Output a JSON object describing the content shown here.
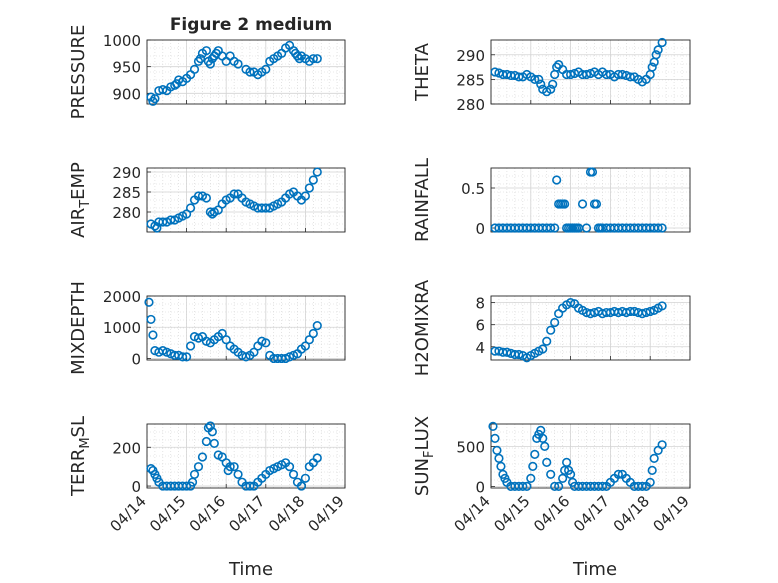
{
  "figure": {
    "title": "Figure 2 medium",
    "xlabel": "Time"
  },
  "colors": {
    "marker": "#0072BD",
    "axis": "#262626",
    "grid": "#d3d3d3"
  },
  "chart_data": [
    {
      "type": "scatter",
      "ylabel": "PRESSURE",
      "ylabel_sub": "",
      "ylim": [
        880,
        1000
      ],
      "yticks": [
        "900",
        "950",
        "1000"
      ],
      "ytick_values": [
        900,
        950,
        1000
      ],
      "xlim": [
        0,
        5
      ],
      "xticks": [],
      "x": [
        0.1,
        0.15,
        0.2,
        0.3,
        0.4,
        0.5,
        0.6,
        0.7,
        0.75,
        0.8,
        0.9,
        1.0,
        1.1,
        1.2,
        1.3,
        1.35,
        1.4,
        1.5,
        1.55,
        1.6,
        1.65,
        1.7,
        1.75,
        1.8,
        1.9,
        2.0,
        2.1,
        2.2,
        2.3,
        2.5,
        2.6,
        2.7,
        2.8,
        2.9,
        3.0,
        3.1,
        3.2,
        3.3,
        3.4,
        3.5,
        3.6,
        3.7,
        3.75,
        3.8,
        3.85,
        3.9,
        4.0,
        4.1,
        4.2,
        4.3
      ],
      "y": [
        893,
        885,
        890,
        905,
        907,
        905,
        912,
        915,
        918,
        925,
        922,
        928,
        935,
        945,
        960,
        965,
        975,
        980,
        960,
        955,
        965,
        970,
        975,
        980,
        970,
        960,
        970,
        960,
        955,
        945,
        940,
        940,
        935,
        940,
        945,
        960,
        965,
        970,
        975,
        985,
        990,
        980,
        975,
        970,
        965,
        970,
        965,
        960,
        965,
        965
      ]
    },
    {
      "type": "scatter",
      "ylabel": "THETA",
      "ylabel_sub": "",
      "ylim": [
        280,
        293
      ],
      "yticks": [
        "280",
        "285",
        "290"
      ],
      "ytick_values": [
        280,
        285,
        290
      ],
      "xlim": [
        0,
        5
      ],
      "xticks": [],
      "x": [
        0.1,
        0.2,
        0.3,
        0.4,
        0.5,
        0.6,
        0.7,
        0.8,
        0.9,
        1.0,
        1.1,
        1.2,
        1.25,
        1.3,
        1.4,
        1.5,
        1.55,
        1.6,
        1.65,
        1.7,
        1.8,
        1.9,
        2.0,
        2.1,
        2.2,
        2.3,
        2.4,
        2.5,
        2.6,
        2.7,
        2.8,
        2.9,
        3.0,
        3.1,
        3.2,
        3.3,
        3.4,
        3.5,
        3.6,
        3.7,
        3.8,
        3.9,
        4.0,
        4.05,
        4.1,
        4.15,
        4.2,
        4.3
      ],
      "y": [
        286.5,
        286.3,
        286,
        286,
        285.8,
        285.8,
        285.5,
        285.5,
        286,
        285.5,
        285,
        285,
        284,
        283,
        282.5,
        283,
        284,
        286,
        287.5,
        288,
        287,
        286,
        286,
        286.2,
        286.5,
        286,
        286,
        286.2,
        286.5,
        286,
        286.5,
        286,
        286,
        285.5,
        286,
        286,
        285.8,
        285.5,
        285.5,
        285,
        284.5,
        285,
        286,
        287.5,
        288.5,
        290,
        291,
        292.5
      ]
    },
    {
      "type": "scatter",
      "ylabel": "AIR",
      "ylabel_sub": "T",
      "ylabel_suffix": "EMP",
      "ylim": [
        275,
        291
      ],
      "yticks": [
        "280",
        "285",
        "290"
      ],
      "ytick_values": [
        280,
        285,
        290
      ],
      "xlim": [
        0,
        5
      ],
      "xticks": [],
      "x": [
        0.1,
        0.2,
        0.25,
        0.3,
        0.4,
        0.5,
        0.6,
        0.7,
        0.8,
        0.9,
        1.0,
        1.1,
        1.2,
        1.3,
        1.4,
        1.5,
        1.6,
        1.65,
        1.7,
        1.8,
        1.9,
        2.0,
        2.1,
        2.2,
        2.3,
        2.4,
        2.5,
        2.6,
        2.7,
        2.8,
        2.9,
        3.0,
        3.1,
        3.2,
        3.3,
        3.4,
        3.5,
        3.6,
        3.7,
        3.8,
        3.9,
        4.0,
        4.1,
        4.2,
        4.3
      ],
      "y": [
        277,
        276.5,
        276,
        277.5,
        277.5,
        277.5,
        278,
        278,
        278.5,
        279,
        279.5,
        281,
        283,
        284,
        284,
        283.5,
        280,
        279.5,
        280,
        280.5,
        282,
        283,
        283.5,
        284.5,
        284.5,
        283.5,
        282.5,
        282,
        281.5,
        281,
        281,
        281,
        281,
        281.5,
        282,
        282.5,
        283.5,
        284.5,
        285,
        284,
        283,
        284,
        286,
        288,
        290
      ]
    },
    {
      "type": "scatter",
      "ylabel": "RAINFALL",
      "ylabel_sub": "",
      "ylim": [
        -0.05,
        0.75
      ],
      "yticks": [
        "0",
        "0.5"
      ],
      "ytick_values": [
        0,
        0.5
      ],
      "xlim": [
        0,
        5
      ],
      "xticks": [],
      "x": [
        0.1,
        0.2,
        0.3,
        0.4,
        0.5,
        0.6,
        0.7,
        0.8,
        0.9,
        1.0,
        1.1,
        1.2,
        1.3,
        1.4,
        1.5,
        1.6,
        1.65,
        1.7,
        1.75,
        1.8,
        1.85,
        1.9,
        1.95,
        2.0,
        2.05,
        2.1,
        2.15,
        2.2,
        2.3,
        2.4,
        2.5,
        2.55,
        2.6,
        2.65,
        2.7,
        2.75,
        2.8,
        2.9,
        3.0,
        3.1,
        3.2,
        3.3,
        3.4,
        3.5,
        3.6,
        3.7,
        3.8,
        3.9,
        4.0,
        4.1,
        4.2,
        4.3
      ],
      "y": [
        0,
        0,
        0,
        0,
        0,
        0,
        0,
        0,
        0,
        0,
        0,
        0,
        0,
        0,
        0,
        0,
        0.6,
        0.3,
        0.3,
        0.3,
        0.3,
        0,
        0,
        0,
        0,
        0,
        0,
        0,
        0.3,
        0,
        0.7,
        0.7,
        0.3,
        0.3,
        0,
        0,
        0,
        0,
        0,
        0,
        0,
        0,
        0,
        0,
        0,
        0,
        0,
        0,
        0,
        0,
        0,
        0
      ]
    },
    {
      "type": "scatter",
      "ylabel": "MIXDEPTH",
      "ylabel_sub": "",
      "ylim": [
        -50,
        2000
      ],
      "yticks": [
        "0",
        "1000",
        "2000"
      ],
      "ytick_values": [
        0,
        1000,
        2000
      ],
      "xlim": [
        0,
        5
      ],
      "xticks": [],
      "x": [
        0.05,
        0.1,
        0.15,
        0.2,
        0.3,
        0.4,
        0.5,
        0.6,
        0.7,
        0.8,
        0.9,
        1.0,
        1.1,
        1.2,
        1.3,
        1.4,
        1.5,
        1.6,
        1.7,
        1.8,
        1.9,
        2.0,
        2.1,
        2.2,
        2.3,
        2.4,
        2.5,
        2.6,
        2.7,
        2.8,
        2.9,
        3.0,
        3.1,
        3.2,
        3.3,
        3.4,
        3.5,
        3.6,
        3.7,
        3.8,
        3.9,
        4.0,
        4.1,
        4.2,
        4.3
      ],
      "y": [
        1800,
        1250,
        750,
        250,
        200,
        250,
        200,
        150,
        100,
        100,
        50,
        50,
        400,
        700,
        650,
        700,
        550,
        500,
        600,
        700,
        800,
        600,
        400,
        300,
        200,
        100,
        50,
        100,
        200,
        400,
        550,
        500,
        100,
        0,
        0,
        0,
        0,
        50,
        100,
        150,
        300,
        400,
        600,
        800,
        1050
      ]
    },
    {
      "type": "scatter",
      "ylabel": "H2OMIXRA",
      "ylabel_sub": "",
      "ylim": [
        2.8,
        8.6
      ],
      "yticks": [
        "4",
        "6",
        "8"
      ],
      "ytick_values": [
        4,
        6,
        8
      ],
      "xlim": [
        0,
        5
      ],
      "xticks": [],
      "x": [
        0.1,
        0.2,
        0.3,
        0.4,
        0.5,
        0.6,
        0.7,
        0.8,
        0.9,
        1.0,
        1.1,
        1.2,
        1.3,
        1.4,
        1.5,
        1.6,
        1.7,
        1.8,
        1.9,
        2.0,
        2.1,
        2.2,
        2.3,
        2.4,
        2.5,
        2.6,
        2.7,
        2.8,
        2.9,
        3.0,
        3.1,
        3.2,
        3.3,
        3.4,
        3.5,
        3.6,
        3.7,
        3.8,
        3.9,
        4.0,
        4.1,
        4.2,
        4.3
      ],
      "y": [
        3.6,
        3.6,
        3.5,
        3.5,
        3.4,
        3.3,
        3.3,
        3.2,
        3.0,
        3.2,
        3.4,
        3.6,
        3.8,
        4.5,
        5.5,
        6.2,
        7.0,
        7.5,
        7.8,
        8.0,
        7.9,
        7.5,
        7.3,
        7.1,
        7.0,
        7.1,
        7.2,
        7.0,
        7.1,
        7.1,
        7.2,
        7.1,
        7.2,
        7.1,
        7.2,
        7.2,
        7.1,
        7.0,
        7.1,
        7.2,
        7.3,
        7.5,
        7.7
      ]
    },
    {
      "type": "scatter",
      "ylabel": "TERR",
      "ylabel_sub": "M",
      "ylabel_suffix": "SL",
      "ylim": [
        -10,
        320
      ],
      "yticks": [
        "0",
        "200"
      ],
      "ytick_values": [
        0,
        200
      ],
      "xlim": [
        0,
        5
      ],
      "xticks": [
        "04/14",
        "04/15",
        "04/16",
        "04/17",
        "04/18",
        "04/19"
      ],
      "x": [
        0.1,
        0.15,
        0.2,
        0.25,
        0.3,
        0.4,
        0.5,
        0.6,
        0.7,
        0.8,
        0.9,
        1.0,
        1.1,
        1.15,
        1.2,
        1.3,
        1.4,
        1.5,
        1.55,
        1.6,
        1.65,
        1.7,
        1.8,
        1.9,
        2.0,
        2.05,
        2.1,
        2.2,
        2.3,
        2.4,
        2.5,
        2.6,
        2.7,
        2.8,
        2.9,
        3.0,
        3.1,
        3.2,
        3.3,
        3.4,
        3.5,
        3.6,
        3.7,
        3.8,
        3.9,
        4.0,
        4.1,
        4.2,
        4.3
      ],
      "y": [
        90,
        80,
        60,
        40,
        20,
        0,
        0,
        0,
        0,
        0,
        0,
        0,
        0,
        20,
        60,
        100,
        150,
        230,
        300,
        310,
        280,
        220,
        160,
        150,
        120,
        80,
        100,
        100,
        60,
        20,
        0,
        0,
        0,
        20,
        40,
        60,
        80,
        90,
        100,
        110,
        120,
        100,
        60,
        20,
        0,
        40,
        100,
        120,
        145
      ]
    },
    {
      "type": "scatter",
      "ylabel": "SUN",
      "ylabel_sub": "F",
      "ylabel_suffix": "LUX",
      "ylim": [
        -20,
        780
      ],
      "yticks": [
        "0",
        "500"
      ],
      "ytick_values": [
        0,
        500
      ],
      "xlim": [
        0,
        5
      ],
      "xticks": [
        "04/14",
        "04/15",
        "04/16",
        "04/17",
        "04/18",
        "04/19"
      ],
      "x": [
        0.05,
        0.1,
        0.15,
        0.2,
        0.25,
        0.3,
        0.35,
        0.4,
        0.5,
        0.6,
        0.7,
        0.8,
        0.9,
        1.0,
        1.05,
        1.1,
        1.15,
        1.2,
        1.25,
        1.3,
        1.35,
        1.4,
        1.5,
        1.6,
        1.7,
        1.8,
        1.85,
        1.9,
        1.95,
        2.0,
        2.05,
        2.1,
        2.2,
        2.3,
        2.4,
        2.5,
        2.6,
        2.7,
        2.8,
        2.9,
        3.0,
        3.1,
        3.2,
        3.3,
        3.4,
        3.5,
        3.6,
        3.7,
        3.8,
        3.9,
        4.0,
        4.05,
        4.1,
        4.2,
        4.3
      ],
      "y": [
        750,
        600,
        450,
        350,
        250,
        150,
        100,
        50,
        0,
        0,
        0,
        0,
        0,
        100,
        250,
        400,
        600,
        650,
        700,
        600,
        500,
        300,
        150,
        0,
        0,
        100,
        200,
        300,
        200,
        150,
        50,
        0,
        0,
        0,
        0,
        0,
        0,
        0,
        0,
        0,
        50,
        100,
        150,
        150,
        100,
        50,
        0,
        0,
        0,
        0,
        50,
        200,
        350,
        450,
        520
      ]
    }
  ]
}
